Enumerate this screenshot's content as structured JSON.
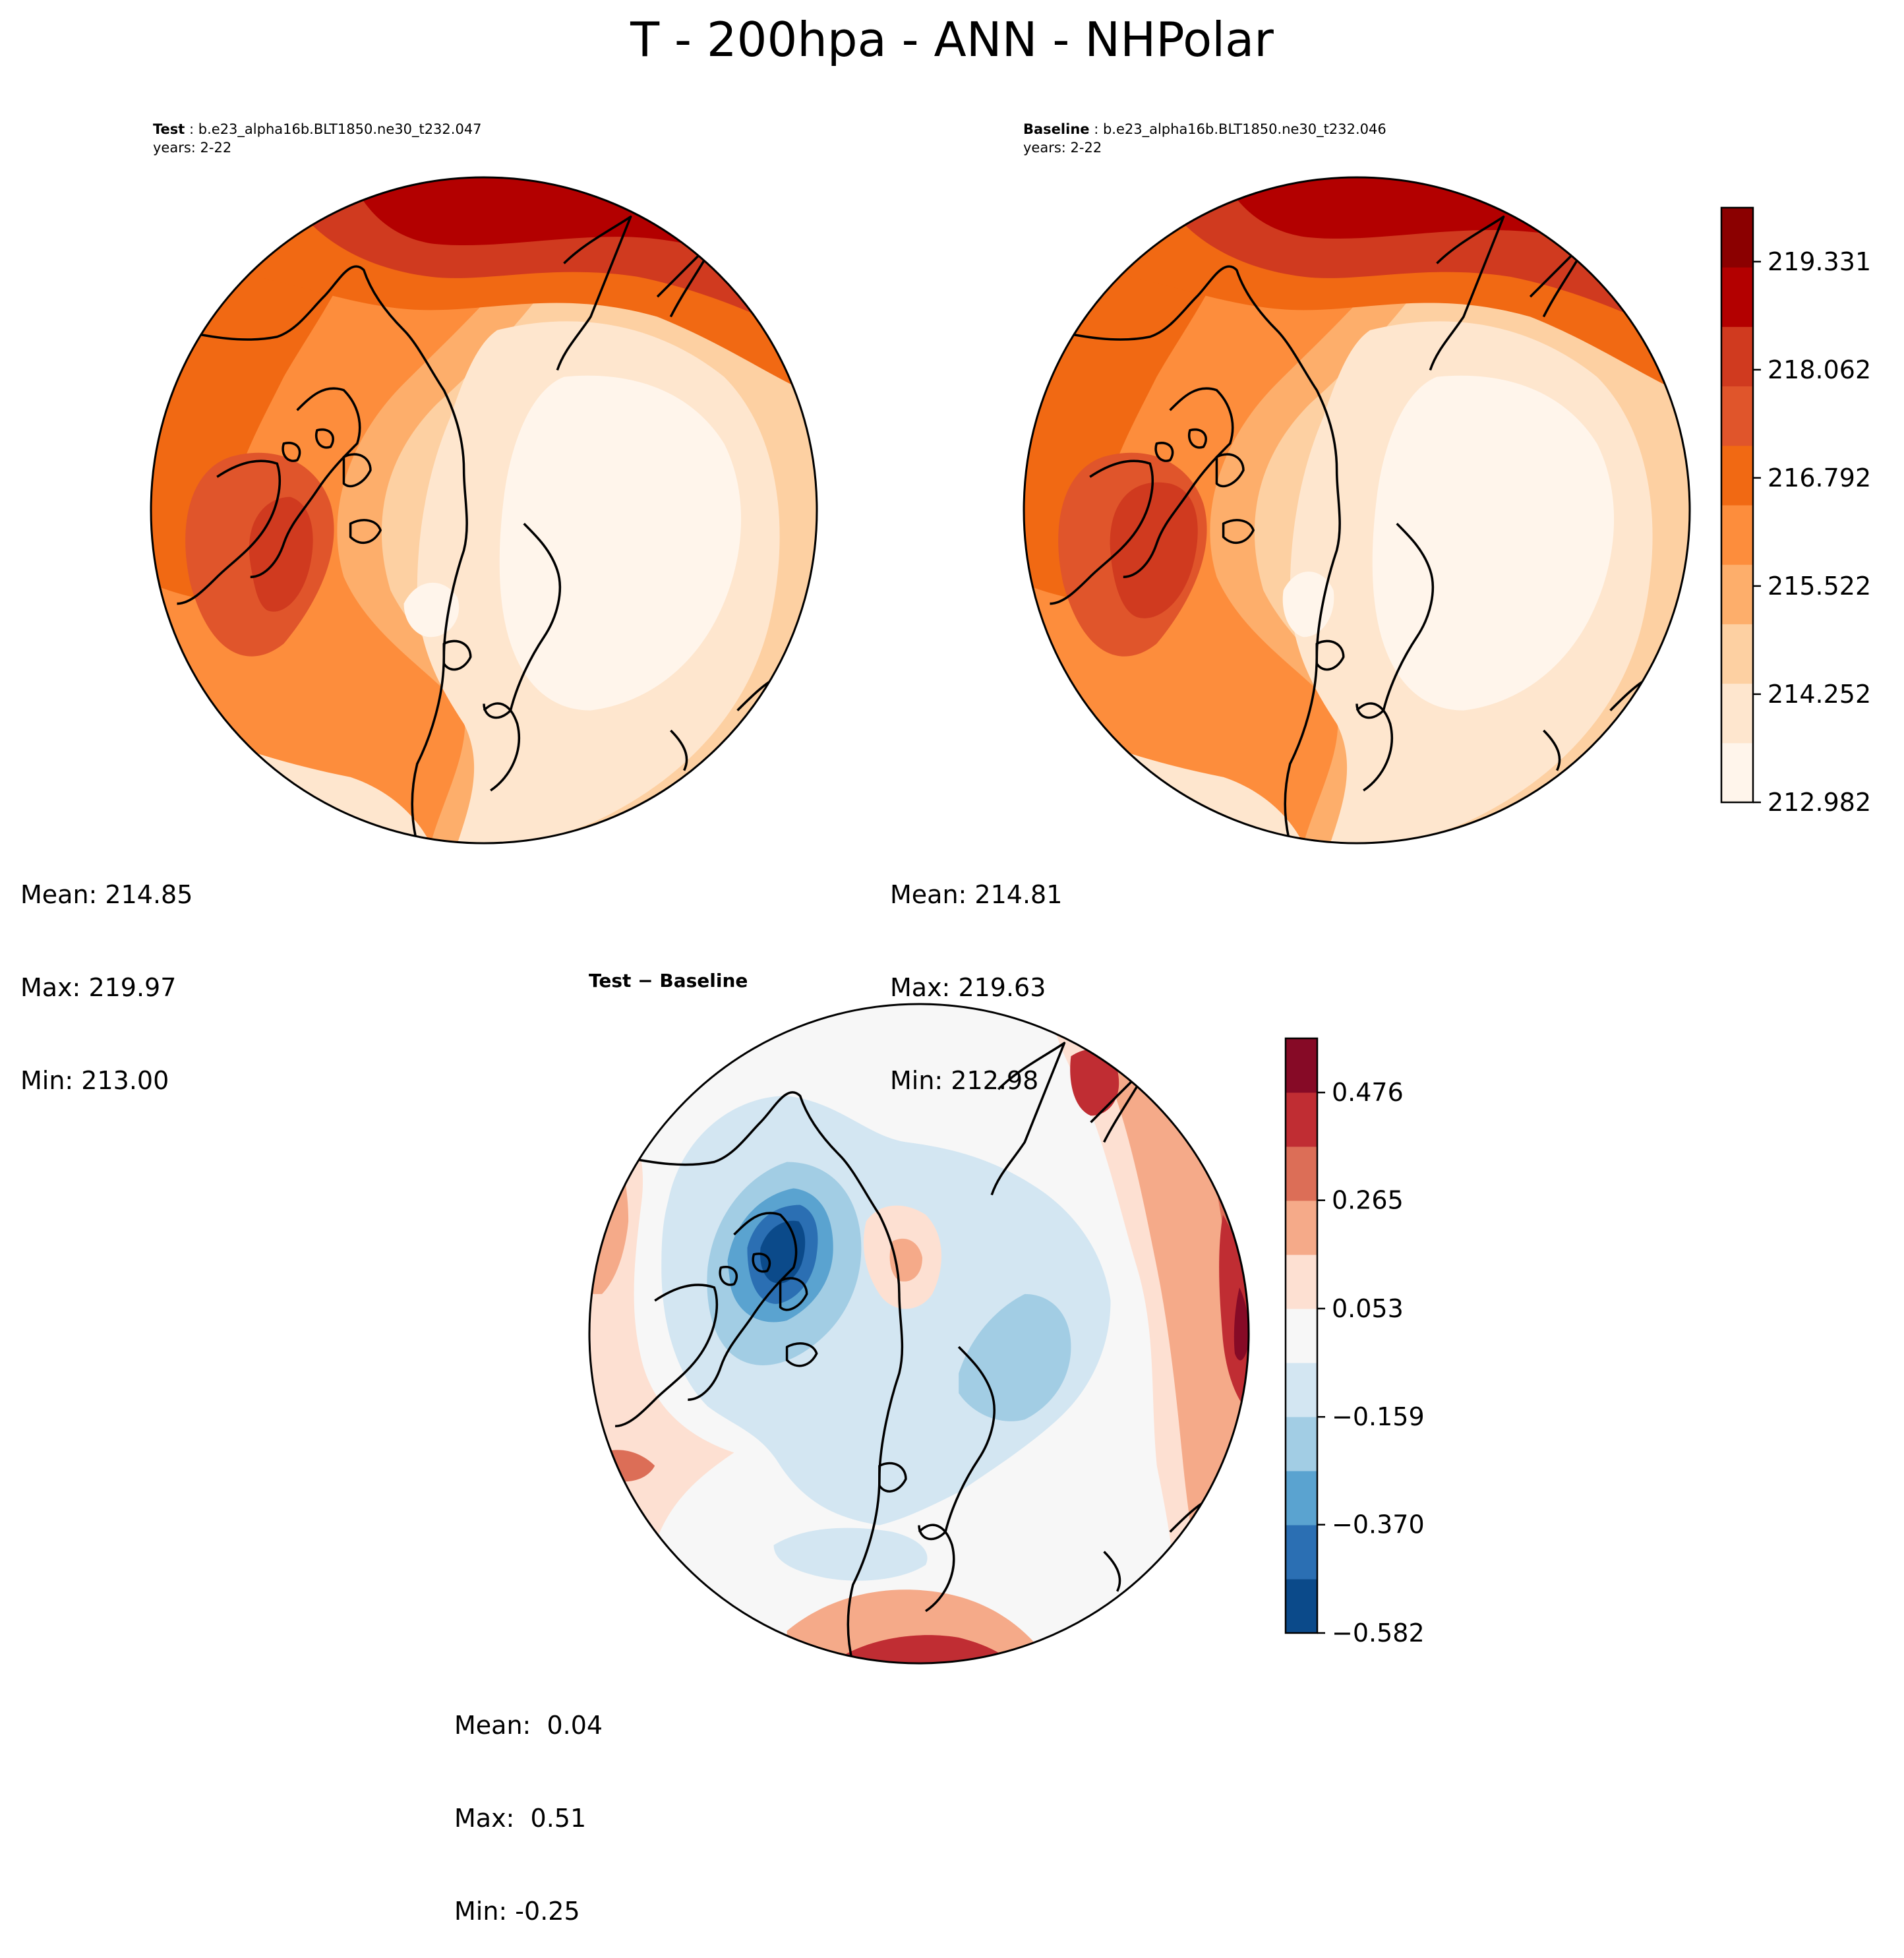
{
  "figure_title": "T - 200hpa - ANN - NHPolar",
  "panels": {
    "test": {
      "label": "Test",
      "case": "b.e23_alpha16b.BLT1850.ne30_t232.047",
      "years": "years: 2-22",
      "stats": {
        "mean": "Mean: 214.85",
        "max": "Max: 219.97",
        "min": "Min: 213.00"
      }
    },
    "baseline": {
      "label": "Baseline",
      "case": "b.e23_alpha16b.BLT1850.ne30_t232.046",
      "years": "years: 2-22",
      "stats": {
        "mean": "Mean: 214.81",
        "max": "Max: 219.63",
        "min": "Min: 212.98"
      }
    },
    "diff": {
      "label": "Test − Baseline",
      "stats": {
        "mean": "Mean:  0.04",
        "max": "Max:  0.51",
        "min": "Min: -0.25"
      }
    }
  },
  "colors": {
    "temp": [
      "#fff5eb",
      "#fee6ce",
      "#fdd0a2",
      "#fdae6b",
      "#fd8d3c",
      "#f16913",
      "#e0552b",
      "#d03a1f",
      "#b30000",
      "#8b0000"
    ],
    "diff": [
      "#0b4a8a",
      "#2b6fb3",
      "#5aa3d0",
      "#a2cde4",
      "#d3e6f2",
      "#f7f7f7",
      "#fde0d2",
      "#f5aa89",
      "#dc6e57",
      "#c02d33",
      "#860a26"
    ]
  },
  "chart_data": [
    {
      "type": "heatmap",
      "title": "Test : b.e23_alpha16b.BLT1850.ne30_t232.047",
      "projection": "North polar stereographic",
      "variable": "T at 200 hPa, annual mean",
      "colorbar_ticks": [
        "219.331",
        "218.062",
        "216.792",
        "215.522",
        "214.252",
        "212.982"
      ],
      "levels_range": [
        212.982,
        219.965
      ],
      "mean": 214.85,
      "max": 219.97,
      "min": 213.0
    },
    {
      "type": "heatmap",
      "title": "Baseline : b.e23_alpha16b.BLT1850.ne30_t232.046",
      "projection": "North polar stereographic",
      "variable": "T at 200 hPa, annual mean",
      "colorbar_ticks": [
        "219.331",
        "218.062",
        "216.792",
        "215.522",
        "214.252",
        "212.982"
      ],
      "levels_range": [
        212.982,
        219.965
      ],
      "mean": 214.81,
      "max": 219.63,
      "min": 212.98
    },
    {
      "type": "heatmap",
      "title": "Test − Baseline",
      "projection": "North polar stereographic",
      "variable": "T difference at 200 hPa",
      "colorbar_ticks": [
        "0.476",
        "0.265",
        "0.053",
        "−0.159",
        "−0.370",
        "−0.582"
      ],
      "levels_range": [
        -0.582,
        0.582
      ],
      "mean": 0.04,
      "max": 0.51,
      "min": -0.25
    }
  ]
}
